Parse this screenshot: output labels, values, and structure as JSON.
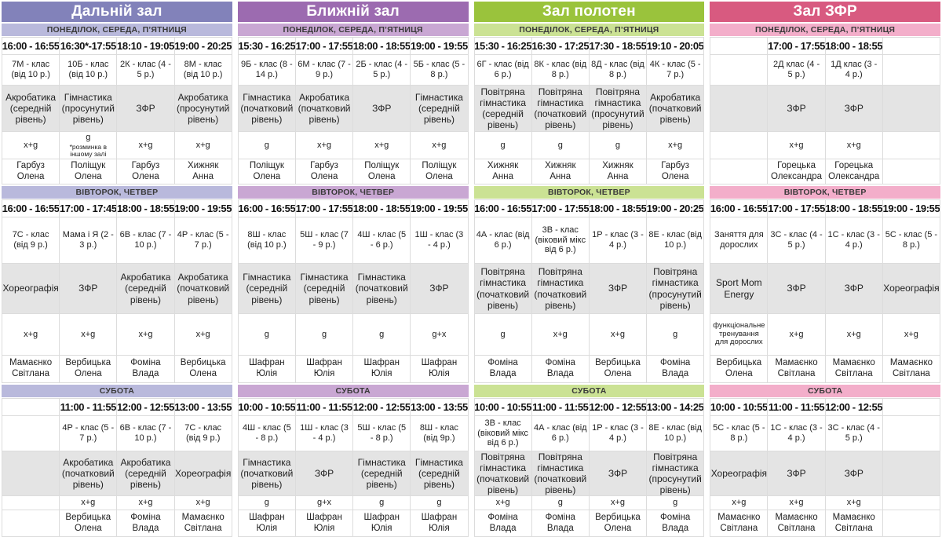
{
  "halls": [
    {
      "name": "Дальній зал",
      "header_bg": "#8282ba",
      "band_bg": "#b9b9dc",
      "sections": [
        {
          "day": "ПОНЕДІЛОК, СЕРЕДА, П’ЯТНИЦЯ",
          "slots": [
            {
              "time": "16:00 - 16:55",
              "class": "7М - клас (від 10 р.)",
              "activity": "Акробатика (середній рівень)",
              "code": "х+g",
              "coach": "Гарбуз Олена"
            },
            {
              "time": "16:30*-17:55",
              "class": "10Б - клас (від 10 р.)",
              "activity": "Гімнастика (просунутий рівень)",
              "code": "g",
              "code_note": "*розминка в іншому залі",
              "coach": "Поліщук Олена"
            },
            {
              "time": "18:10 - 19:05",
              "class": "2К - клас (4 - 5 р.)",
              "activity": "ЗФР",
              "code": "х+g",
              "coach": "Гарбуз Олена"
            },
            {
              "time": "19:00 - 20:25",
              "class": "8М - клас (від 10 р.)",
              "activity": "Акробатика (просунутий рівень)",
              "code": "х+g",
              "coach": "Хижняк Анна"
            }
          ]
        },
        {
          "day": "ВІВТОРОК, ЧЕТВЕР",
          "slots": [
            {
              "time": "16:00 - 16:55",
              "class": "7С - клас (від 9 р.)",
              "activity": "Хореографія",
              "code": "х+g",
              "coach": "Мамаєнко Світлана"
            },
            {
              "time": "17:00 - 17:45",
              "class": "Мама і Я (2 - 3 р.)",
              "activity": "ЗФР",
              "code": "х+g",
              "coach": "Вербицька Олена"
            },
            {
              "time": "18:00 - 18:55",
              "class": "6В - клас (7 - 10 р.)",
              "activity": "Акробатика (середній рівень)",
              "code": "х+g",
              "coach": "Фоміна Влада"
            },
            {
              "time": "19:00 - 19:55",
              "class": "4Р - клас (5 - 7 р.)",
              "activity": "Акробатика (початковий рівень)",
              "code": "х+g",
              "coach": "Вербицька Олена"
            }
          ]
        },
        {
          "day": "СУБОТА",
          "slots": [
            {
              "time": "",
              "class": "",
              "activity": "",
              "code": "",
              "coach": ""
            },
            {
              "time": "11:00 - 11:55",
              "class": "4Р - клас (5 - 7 р.)",
              "activity": "Акробатика (початковий рівень)",
              "code": "х+g",
              "coach": "Вербицька Олена"
            },
            {
              "time": "12:00 - 12:55",
              "class": "6В - клас (7 - 10 р.)",
              "activity": "Акробатика (середній рівень)",
              "code": "х+g",
              "coach": "Фоміна Влада"
            },
            {
              "time": "13:00 - 13:55",
              "class": "7С - клас (від 9 р.)",
              "activity": "Хореографія",
              "code": "х+g",
              "coach": "Мамаєнко Світлана"
            }
          ]
        }
      ]
    },
    {
      "name": "Ближній зал",
      "header_bg": "#9c6bb0",
      "band_bg": "#c9a7d3",
      "sections": [
        {
          "day": "ПОНЕДІЛОК, СЕРЕДА, П’ЯТНИЦЯ",
          "slots": [
            {
              "time": "15:30 - 16:25",
              "class": "9Б - клас (8 - 14 р.)",
              "activity": "Гімнастика (початковий рівень)",
              "code": "g",
              "coach": "Поліщук Олена"
            },
            {
              "time": "17:00 - 17:55",
              "class": "6М - клас (7 - 9 р.)",
              "activity": "Акробатика (початковий рівень)",
              "code": "х+g",
              "coach": "Гарбуз Олена"
            },
            {
              "time": "18:00 - 18:55",
              "class": "2Б - клас (4 - 5 р.)",
              "activity": "ЗФР",
              "code": "х+g",
              "coach": "Поліщук Олена"
            },
            {
              "time": "19:00 - 19:55",
              "class": "5Б - клас (5 - 8 р.)",
              "activity": "Гімнастика (середній рівень)",
              "code": "х+g",
              "coach": "Поліщук Олена"
            }
          ]
        },
        {
          "day": "ВІВТОРОК, ЧЕТВЕР",
          "slots": [
            {
              "time": "16:00 - 16:55",
              "class": "8Ш - клас (від 10 р.)",
              "activity": "Гімнастика (середній рівень)",
              "code": "g",
              "coach": "Шафран Юлія"
            },
            {
              "time": "17:00 - 17:55",
              "class": "5Ш - клас (7 - 9 р.)",
              "activity": "Гімнастика (середній рівень)",
              "code": "g",
              "coach": "Шафран Юлія"
            },
            {
              "time": "18:00 - 18:55",
              "class": "4Ш - клас (5 - 6 р.)",
              "activity": "Гімнастика (початковий рівень)",
              "code": "g",
              "coach": "Шафран Юлія"
            },
            {
              "time": "19:00 - 19:55",
              "class": "1Ш - клас (3 - 4 р.)",
              "activity": "ЗФР",
              "code": "g+х",
              "coach": "Шафран Юлія"
            }
          ]
        },
        {
          "day": "СУБОТА",
          "slots": [
            {
              "time": "10:00 - 10:55",
              "class": "4Ш - клас (5 - 8 р.)",
              "activity": "Гімнастика (початковий рівень)",
              "code": "g",
              "coach": "Шафран Юлія"
            },
            {
              "time": "11:00 - 11:55",
              "class": "1Ш - клас (3 - 4 р.)",
              "activity": "ЗФР",
              "code": "g+х",
              "coach": "Шафран Юлія"
            },
            {
              "time": "12:00 - 12:55",
              "class": "5Ш - клас (5 - 8 р.)",
              "activity": "Гімнастика (середній рівень)",
              "code": "g",
              "coach": "Шафран Юлія"
            },
            {
              "time": "13:00 - 13:55",
              "class": "8Ш - клас (від 9р.)",
              "activity": "Гімнастика (середній рівень)",
              "code": "g",
              "coach": "Шафран Юлія"
            }
          ]
        }
      ]
    },
    {
      "name": "Зал полотен",
      "header_bg": "#9ac33c",
      "band_bg": "#cbe294",
      "sections": [
        {
          "day": "ПОНЕДІЛОК, СЕРЕДА, П’ЯТНИЦЯ",
          "slots": [
            {
              "time": "15:30 - 16:25",
              "class": "6Г - клас (від 6 р.)",
              "activity": "Повітряна гімнастика (середній рівень)",
              "code": "g",
              "coach": "Хижняк Анна"
            },
            {
              "time": "16:30 - 17:25",
              "class": "8К - клас (від 8 р.)",
              "activity": "Повітряна гімнастика (початковий рівень)",
              "code": "g",
              "coach": "Хижняк Анна"
            },
            {
              "time": "17:30 - 18:55",
              "class": "8Д - клас (від 8 р.)",
              "activity": "Повітряна гімнастика (просунутий рівень)",
              "code": "g",
              "coach": "Хижняк Анна"
            },
            {
              "time": "19:10 - 20:05",
              "class": "4К - клас (5 - 7 р.)",
              "activity": "Акробатика (початковий рівень)",
              "code": "х+g",
              "coach": "Гарбуз Олена"
            }
          ]
        },
        {
          "day": "ВІВТОРОК, ЧЕТВЕР",
          "slots": [
            {
              "time": "16:00 - 16:55",
              "class": "4А - клас (від 6 р.)",
              "activity": "Повітряна гімнастика (початковий рівень)",
              "code": "g",
              "coach": "Фоміна Влада"
            },
            {
              "time": "17:00 - 17:55",
              "class": "3В - клас (віковий мікс від 6 р.)",
              "activity": "Повітряна гімнастика (початковий рівень)",
              "code": "х+g",
              "coach": "Фоміна Влада"
            },
            {
              "time": "18:00 - 18:55",
              "class": "1Р - клас (3 - 4 р.)",
              "activity": "ЗФР",
              "code": "х+g",
              "coach": "Вербицька Олена"
            },
            {
              "time": "19:00 - 20:25",
              "class": "8Е - клас (від 10 р.)",
              "activity": "Повітряна гімнастика (просунутий рівень)",
              "code": "g",
              "coach": "Фоміна Влада"
            }
          ]
        },
        {
          "day": "СУБОТА",
          "slots": [
            {
              "time": "10:00 - 10:55",
              "class": "3В - клас (віковий мікс від 6 р.)",
              "activity": "Повітряна гімнастика (початковий рівень)",
              "code": "х+g",
              "coach": "Фоміна Влада"
            },
            {
              "time": "11:00 - 11:55",
              "class": "4А - клас (від 6 р.)",
              "activity": "Повітряна гімнастика (початковий рівень)",
              "code": "g",
              "coach": "Фоміна Влада"
            },
            {
              "time": "12:00 - 12:55",
              "class": "1Р - клас (3 - 4 р.)",
              "activity": "ЗФР",
              "code": "х+g",
              "coach": "Вербицька Олена"
            },
            {
              "time": "13:00 - 14:25",
              "class": "8Е - клас (від 10 р.)",
              "activity": "Повітряна гімнастика (просунутий рівень)",
              "code": "g",
              "coach": "Фоміна Влада"
            }
          ]
        }
      ]
    },
    {
      "name": "Зал ЗФР",
      "header_bg": "#d85a80",
      "band_bg": "#f3aeca",
      "sections": [
        {
          "day": "ПОНЕДІЛОК, СЕРЕДА, П’ЯТНИЦЯ",
          "slots": [
            {
              "time": "",
              "class": "",
              "activity": "",
              "code": "",
              "coach": ""
            },
            {
              "time": "17:00 - 17:55",
              "class": "2Д клас (4 - 5 р.)",
              "activity": "ЗФР",
              "code": "х+g",
              "coach": "Горецька Олександра"
            },
            {
              "time": "18:00 - 18:55",
              "class": "1Д клас (3 - 4 р.)",
              "activity": "ЗФР",
              "code": "х+g",
              "coach": "Горецька Олександра"
            },
            {
              "time": "",
              "class": "",
              "activity": "",
              "code": "",
              "coach": ""
            }
          ]
        },
        {
          "day": "ВІВТОРОК, ЧЕТВЕР",
          "slots": [
            {
              "time": "16:00 - 16:55",
              "class": "Заняття для дорослих",
              "activity": "Sport Mom Energy",
              "code": "функціо­нальне тренування для дорослих",
              "coach": "Вербицька Олена"
            },
            {
              "time": "17:00 - 17:55",
              "class": "3С - клас (4 - 5 р.)",
              "activity": "ЗФР",
              "code": "х+g",
              "coach": "Мамаєнко Світлана"
            },
            {
              "time": "18:00 - 18:55",
              "class": "1С - клас (3 - 4 р.)",
              "activity": "ЗФР",
              "code": "х+g",
              "coach": "Мамаєнко Світлана"
            },
            {
              "time": "19:00 - 19:55",
              "class": "5С - клас (5 - 8 р.)",
              "activity": "Хореографія",
              "code": "х+g",
              "coach": "Мамаєнко Світлана"
            }
          ]
        },
        {
          "day": "СУБОТА",
          "slots": [
            {
              "time": "10:00 - 10:55",
              "class": "5С - клас (5 - 8 р.)",
              "activity": "Хореографія",
              "code": "х+g",
              "coach": "Мамаєнко Світлана"
            },
            {
              "time": "11:00 - 11:55",
              "class": "1С - клас (3 - 4 р.)",
              "activity": "ЗФР",
              "code": "х+g",
              "coach": "Мамаєнко Світлана"
            },
            {
              "time": "12:00 - 12:55",
              "class": "3С - клас (4 - 5 р.)",
              "activity": "ЗФР",
              "code": "х+g",
              "coach": "Мамаєнко Світлана"
            },
            {
              "time": "",
              "class": "",
              "activity": "",
              "code": "",
              "coach": ""
            }
          ]
        }
      ]
    }
  ]
}
